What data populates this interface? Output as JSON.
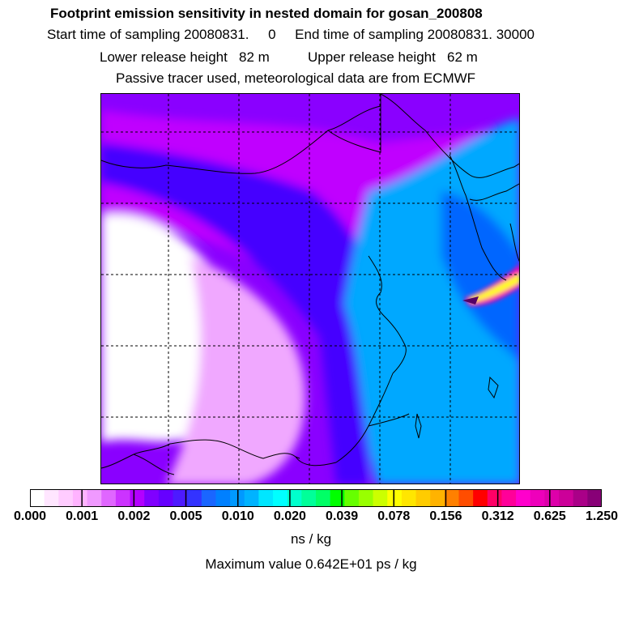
{
  "header": {
    "title": "Footprint emission sensitivity in nested domain for gosan_200808",
    "sampling": "Start time of sampling 20080831.     0     End time of sampling 20080831. 30000",
    "release": "Lower release height   82 m          Upper release height   62 m",
    "tracer": "Passive tracer used, meteorological data are from ECMWF"
  },
  "colorbar": {
    "colors": [
      "#ffffff",
      "#ffe6ff",
      "#ffccff",
      "#ffb3ff",
      "#f099ff",
      "#e066ff",
      "#cc33ff",
      "#b300ff",
      "#8000ff",
      "#6600ff",
      "#4d1aff",
      "#3333ff",
      "#1a66ff",
      "#0080ff",
      "#0099ff",
      "#00b3ff",
      "#00e6ff",
      "#00ffff",
      "#00ffcc",
      "#00ff99",
      "#00ff66",
      "#00ff00",
      "#66ff00",
      "#99ff00",
      "#ccff00",
      "#ffff00",
      "#ffe600",
      "#ffcc00",
      "#ffb300",
      "#ff8000",
      "#ff4d00",
      "#ff0000",
      "#ff0066",
      "#ff0099",
      "#ff00cc",
      "#ee00bb",
      "#dd00aa",
      "#cc0099",
      "#aa0088",
      "#880077"
    ],
    "tick_labels": [
      "0.000",
      "0.001",
      "0.002",
      "0.005",
      "0.010",
      "0.020",
      "0.039",
      "0.078",
      "0.156",
      "0.312",
      "0.625",
      "1.250"
    ],
    "units": "ns / kg"
  },
  "footer": {
    "maximum": "Maximum value  0.642E+01 ps / kg"
  },
  "map": {
    "field_colors": {
      "white": "#ffffff",
      "light": "#f0a8ff",
      "purple": "#c000ff",
      "violet": "#8a00ff",
      "blue": "#4400ff",
      "lightblue": "#00a8ff",
      "blue2": "#0066ff",
      "magenta": "#ff00aa",
      "yellow": "#ffff00",
      "dark": "#550066"
    }
  }
}
